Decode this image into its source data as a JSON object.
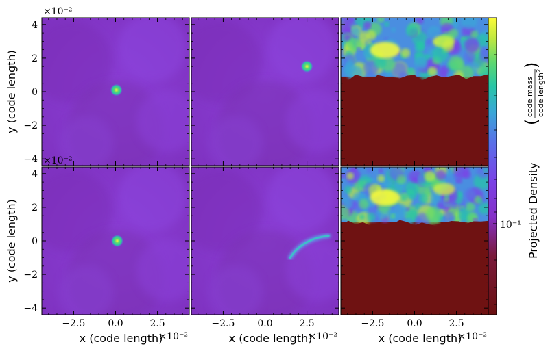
{
  "chart_data": {
    "type": "heatmap",
    "layout": {
      "rows": 2,
      "cols": 3
    },
    "xlabel": "x  (code length)",
    "ylabel": "y  (code length)",
    "x_multiplier": "×10⁻²",
    "y_multiplier": "×10⁻²",
    "xlim": [
      -4.4,
      4.4
    ],
    "ylim": [
      -4.4,
      4.4
    ],
    "xticks": [
      -2.5,
      0.0,
      2.5
    ],
    "xtick_labels": [
      "−2.5",
      "0.0",
      "2.5"
    ],
    "yticks": [
      -4,
      -2,
      0,
      2,
      4
    ],
    "ytick_labels": [
      "−4",
      "−2",
      "0",
      "2",
      "4"
    ],
    "colorbar": {
      "label_main": "Projected Density",
      "unit_num": "code mass",
      "unit_den": "code length",
      "unit_den_exp": "2",
      "tick_label": "10⁻¹",
      "tick_value": 0.1,
      "scale": "log",
      "colormap": [
        "#6a1010",
        "#7a1b3c",
        "#8530c8",
        "#7a42e6",
        "#5a70e8",
        "#3aa6d8",
        "#28c6a6",
        "#5ed870",
        "#bfe840",
        "#fbfb38"
      ]
    },
    "panels": [
      {
        "row": 0,
        "col": 0,
        "features": [
          {
            "kind": "clump",
            "x": 0.05,
            "y": 0.1
          }
        ]
      },
      {
        "row": 0,
        "col": 1,
        "features": [
          {
            "kind": "clump",
            "x": 2.5,
            "y": 1.5
          }
        ]
      },
      {
        "row": 0,
        "col": 2,
        "features": [
          {
            "kind": "dense-band",
            "y_from": 0.9,
            "y_to": 4.4
          }
        ]
      },
      {
        "row": 1,
        "col": 0,
        "features": [
          {
            "kind": "clump",
            "x": 0.1,
            "y": 0.0
          }
        ]
      },
      {
        "row": 1,
        "col": 1,
        "features": [
          {
            "kind": "filament",
            "from": [
              1.5,
              -1.0
            ],
            "to": [
              3.8,
              0.3
            ]
          }
        ]
      },
      {
        "row": 1,
        "col": 2,
        "features": [
          {
            "kind": "dense-band",
            "y_from": 1.1,
            "y_to": 4.4
          }
        ]
      }
    ]
  }
}
